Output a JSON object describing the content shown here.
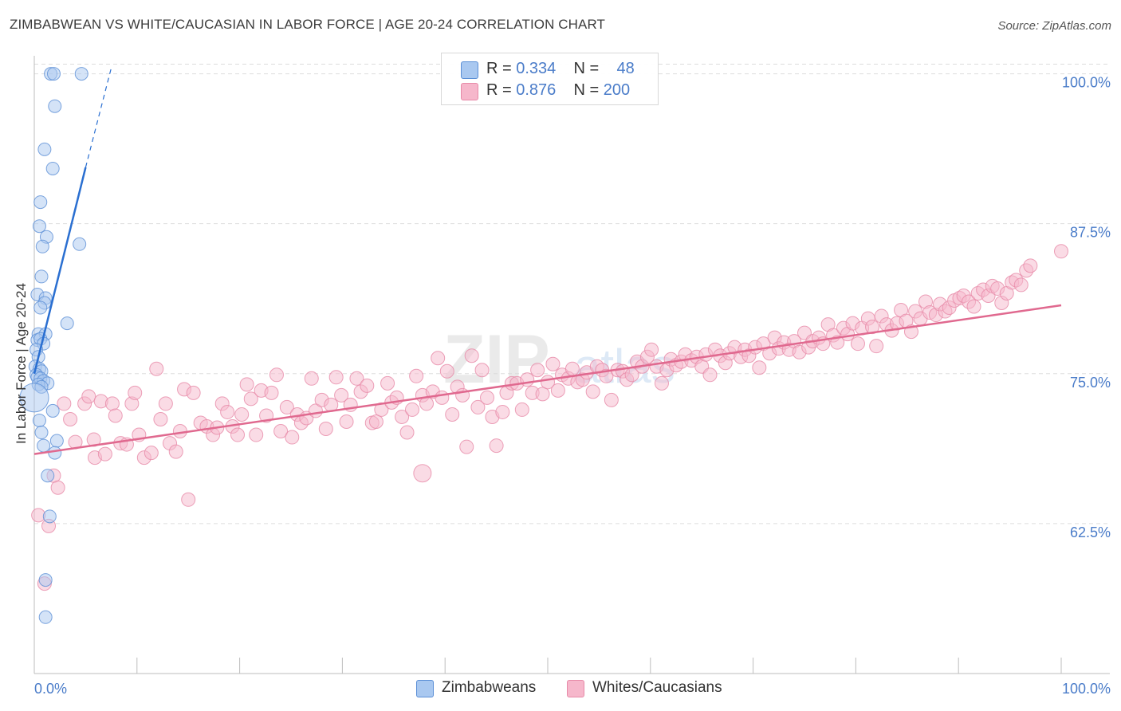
{
  "header": {
    "title": "ZIMBABWEAN VS WHITE/CAUCASIAN IN LABOR FORCE | AGE 20-24 CORRELATION CHART",
    "source": "Source: ZipAtlas.com"
  },
  "legend_box": {
    "rows": [
      {
        "r_label": "R = ",
        "r_value": "0.334",
        "n_label": "N = ",
        "n_value": "48"
      },
      {
        "r_label": "R = ",
        "r_value": "0.876",
        "n_label": "N = ",
        "n_value": "200"
      }
    ]
  },
  "bottom_legend": {
    "items": [
      {
        "label": "Zimbabweans"
      },
      {
        "label": "Whites/Caucasians"
      }
    ]
  },
  "colors": {
    "blue_fill": "#a9c8f0",
    "blue_edge": "#5b8fd6",
    "blue_line": "#2a6fd1",
    "pink_fill": "#f6b7cb",
    "pink_edge": "#e78aa8",
    "pink_line": "#e0698f",
    "tick_label": "#4a7cc9",
    "grid": "#dddddd"
  },
  "chart_data": {
    "type": "scatter",
    "title": "ZIMBABWEAN VS WHITE/CAUCASIAN IN LABOR FORCE | AGE 20-24 CORRELATION CHART",
    "xlabel": "",
    "ylabel": "In Labor Force | Age 20-24",
    "xlim": [
      0,
      100
    ],
    "ylim": [
      50,
      101.5
    ],
    "x_tick_labels": [
      "0.0%",
      "100.0%"
    ],
    "y_ticks": [
      62.5,
      75.0,
      87.5,
      100.0
    ],
    "y_tick_labels": [
      "62.5%",
      "75.0%",
      "87.5%",
      "100.0%"
    ],
    "grid": true,
    "legend_placement": "top-center",
    "watermark": "ZIPatlas",
    "series": [
      {
        "name": "Zimbabweans",
        "R": 0.334,
        "N": 48,
        "trend": {
          "x0": 0.0,
          "y0": 75.0,
          "x1": 5.0,
          "y1": 92.2,
          "dashed_to_x": 7.5,
          "dashed_to_y": 100.5
        },
        "points": [
          [
            1.6,
            100.0
          ],
          [
            1.9,
            100.0
          ],
          [
            4.6,
            100.0
          ],
          [
            2.0,
            97.3
          ],
          [
            1.0,
            93.7
          ],
          [
            1.8,
            92.1
          ],
          [
            0.6,
            89.3
          ],
          [
            0.5,
            87.3
          ],
          [
            1.2,
            86.4
          ],
          [
            0.8,
            85.6
          ],
          [
            4.4,
            85.8
          ],
          [
            0.7,
            83.1
          ],
          [
            0.3,
            81.6
          ],
          [
            1.1,
            81.3
          ],
          [
            1.0,
            80.9
          ],
          [
            0.6,
            80.5
          ],
          [
            3.2,
            79.2
          ],
          [
            0.4,
            78.3
          ],
          [
            1.1,
            78.3
          ],
          [
            0.3,
            77.8
          ],
          [
            0.6,
            77.9
          ],
          [
            0.9,
            77.5
          ],
          [
            0.2,
            77.0
          ],
          [
            0.4,
            76.4
          ],
          [
            0.1,
            75.6
          ],
          [
            0.5,
            75.4
          ],
          [
            0.7,
            75.2
          ],
          [
            0.2,
            74.9
          ],
          [
            0.3,
            74.7
          ],
          [
            0.6,
            74.6
          ],
          [
            0.9,
            74.4
          ],
          [
            1.3,
            74.2
          ],
          [
            0.4,
            74.1
          ],
          [
            0.7,
            73.9
          ],
          [
            0.0,
            73.0
          ],
          [
            1.8,
            71.9
          ],
          [
            0.5,
            71.1
          ],
          [
            0.7,
            70.1
          ],
          [
            2.2,
            69.4
          ],
          [
            0.9,
            69.0
          ],
          [
            2.0,
            68.4
          ],
          [
            1.3,
            66.5
          ],
          [
            1.5,
            63.1
          ],
          [
            1.1,
            57.8
          ],
          [
            1.1,
            54.7
          ]
        ]
      },
      {
        "name": "Whites/Caucasians",
        "R": 0.876,
        "N": 200,
        "trend": {
          "x0": 0.0,
          "y0": 68.3,
          "x1": 100.0,
          "y1": 80.7
        },
        "points": [
          [
            0.4,
            63.2
          ],
          [
            1.4,
            62.3
          ],
          [
            1.0,
            57.5
          ],
          [
            1.9,
            66.5
          ],
          [
            2.3,
            65.5
          ],
          [
            2.9,
            72.5
          ],
          [
            3.5,
            71.2
          ],
          [
            4.0,
            69.3
          ],
          [
            4.9,
            72.5
          ],
          [
            5.3,
            73.1
          ],
          [
            5.8,
            69.5
          ],
          [
            5.9,
            68.0
          ],
          [
            6.5,
            72.7
          ],
          [
            6.9,
            68.3
          ],
          [
            7.6,
            72.5
          ],
          [
            7.9,
            71.5
          ],
          [
            8.4,
            69.2
          ],
          [
            9.0,
            69.1
          ],
          [
            9.5,
            72.5
          ],
          [
            9.8,
            73.4
          ],
          [
            10.2,
            69.9
          ],
          [
            10.7,
            68.0
          ],
          [
            11.4,
            68.4
          ],
          [
            11.9,
            75.4
          ],
          [
            12.3,
            71.2
          ],
          [
            12.8,
            72.5
          ],
          [
            13.2,
            69.2
          ],
          [
            13.8,
            68.5
          ],
          [
            14.2,
            70.2
          ],
          [
            14.6,
            73.7
          ],
          [
            15.0,
            64.5
          ],
          [
            15.5,
            73.4
          ],
          [
            16.2,
            70.9
          ],
          [
            16.8,
            70.6
          ],
          [
            17.4,
            69.9
          ],
          [
            17.8,
            70.5
          ],
          [
            18.3,
            72.5
          ],
          [
            18.8,
            71.8
          ],
          [
            19.3,
            70.6
          ],
          [
            19.8,
            69.9
          ],
          [
            20.2,
            71.6
          ],
          [
            20.7,
            74.1
          ],
          [
            21.1,
            72.9
          ],
          [
            21.6,
            69.9
          ],
          [
            22.1,
            73.6
          ],
          [
            22.6,
            71.5
          ],
          [
            23.1,
            73.4
          ],
          [
            23.6,
            74.9
          ],
          [
            24.0,
            70.2
          ],
          [
            24.6,
            72.2
          ],
          [
            25.1,
            69.7
          ],
          [
            25.6,
            71.6
          ],
          [
            26.0,
            70.9
          ],
          [
            26.5,
            71.3
          ],
          [
            27.0,
            74.6
          ],
          [
            27.4,
            71.9
          ],
          [
            28.0,
            72.8
          ],
          [
            28.4,
            70.4
          ],
          [
            28.9,
            72.4
          ],
          [
            29.4,
            74.7
          ],
          [
            29.9,
            73.2
          ],
          [
            30.4,
            71.0
          ],
          [
            30.8,
            72.4
          ],
          [
            31.4,
            74.6
          ],
          [
            31.8,
            73.5
          ],
          [
            32.4,
            74.0
          ],
          [
            32.9,
            70.9
          ],
          [
            33.3,
            71.0
          ],
          [
            33.8,
            72.0
          ],
          [
            34.4,
            74.2
          ],
          [
            34.8,
            72.6
          ],
          [
            35.3,
            73.0
          ],
          [
            35.8,
            71.4
          ],
          [
            36.3,
            70.1
          ],
          [
            36.8,
            72.0
          ],
          [
            37.2,
            74.8
          ],
          [
            37.8,
            73.2
          ],
          [
            38.2,
            72.5
          ],
          [
            38.8,
            73.5
          ],
          [
            39.3,
            76.3
          ],
          [
            39.7,
            73.0
          ],
          [
            40.2,
            75.2
          ],
          [
            40.7,
            71.6
          ],
          [
            41.2,
            73.9
          ],
          [
            41.7,
            73.2
          ],
          [
            42.1,
            68.9
          ],
          [
            42.6,
            76.5
          ],
          [
            43.2,
            72.2
          ],
          [
            43.6,
            75.3
          ],
          [
            44.1,
            73.0
          ],
          [
            44.6,
            71.4
          ],
          [
            45.0,
            69.0
          ],
          [
            45.6,
            71.8
          ],
          [
            46.0,
            73.4
          ],
          [
            46.5,
            74.2
          ],
          [
            47.0,
            74.2
          ],
          [
            47.5,
            72.0
          ],
          [
            48.0,
            74.5
          ],
          [
            48.5,
            73.4
          ],
          [
            49.0,
            75.3
          ],
          [
            49.5,
            73.3
          ],
          [
            50.0,
            74.3
          ],
          [
            50.5,
            75.8
          ],
          [
            51.0,
            73.6
          ],
          [
            51.4,
            74.9
          ],
          [
            52.0,
            74.6
          ],
          [
            52.4,
            75.4
          ],
          [
            52.9,
            74.3
          ],
          [
            53.4,
            74.5
          ],
          [
            53.8,
            75.1
          ],
          [
            54.4,
            73.5
          ],
          [
            54.8,
            75.6
          ],
          [
            55.3,
            75.3
          ],
          [
            55.7,
            74.8
          ],
          [
            56.2,
            72.8
          ],
          [
            56.8,
            75.3
          ],
          [
            57.3,
            75.2
          ],
          [
            57.7,
            74.5
          ],
          [
            58.2,
            74.9
          ],
          [
            58.7,
            76.0
          ],
          [
            59.2,
            75.6
          ],
          [
            59.7,
            76.4
          ],
          [
            60.1,
            77.0
          ],
          [
            60.6,
            75.6
          ],
          [
            61.1,
            74.2
          ],
          [
            61.6,
            75.3
          ],
          [
            62.0,
            76.2
          ],
          [
            62.5,
            75.7
          ],
          [
            63.0,
            76.0
          ],
          [
            63.4,
            76.6
          ],
          [
            64.0,
            76.1
          ],
          [
            64.5,
            76.4
          ],
          [
            65.0,
            75.6
          ],
          [
            65.4,
            76.6
          ],
          [
            65.8,
            74.9
          ],
          [
            66.3,
            77.0
          ],
          [
            66.8,
            76.5
          ],
          [
            67.3,
            75.9
          ],
          [
            67.7,
            76.7
          ],
          [
            68.2,
            77.2
          ],
          [
            68.8,
            76.4
          ],
          [
            69.2,
            77.0
          ],
          [
            69.6,
            76.5
          ],
          [
            70.2,
            77.2
          ],
          [
            70.6,
            75.5
          ],
          [
            71.0,
            77.5
          ],
          [
            71.6,
            76.7
          ],
          [
            72.1,
            78.0
          ],
          [
            72.5,
            77.1
          ],
          [
            73.0,
            77.6
          ],
          [
            73.5,
            77.0
          ],
          [
            74.0,
            77.7
          ],
          [
            74.5,
            76.8
          ],
          [
            75.0,
            78.4
          ],
          [
            75.4,
            77.2
          ],
          [
            75.8,
            77.7
          ],
          [
            76.4,
            78.0
          ],
          [
            76.8,
            77.5
          ],
          [
            77.3,
            79.1
          ],
          [
            77.8,
            78.2
          ],
          [
            78.2,
            77.6
          ],
          [
            78.8,
            78.8
          ],
          [
            79.2,
            78.3
          ],
          [
            79.7,
            79.2
          ],
          [
            80.2,
            77.5
          ],
          [
            80.6,
            78.8
          ],
          [
            81.2,
            79.6
          ],
          [
            81.6,
            78.9
          ],
          [
            82.0,
            77.3
          ],
          [
            82.5,
            79.8
          ],
          [
            83.0,
            79.1
          ],
          [
            83.5,
            78.6
          ],
          [
            84.0,
            79.2
          ],
          [
            84.4,
            80.3
          ],
          [
            84.9,
            79.4
          ],
          [
            85.4,
            78.5
          ],
          [
            85.8,
            80.2
          ],
          [
            86.3,
            79.6
          ],
          [
            86.8,
            81.0
          ],
          [
            87.2,
            80.1
          ],
          [
            87.8,
            79.9
          ],
          [
            88.2,
            80.8
          ],
          [
            88.7,
            80.2
          ],
          [
            89.1,
            80.5
          ],
          [
            89.6,
            81.1
          ],
          [
            90.1,
            81.3
          ],
          [
            90.5,
            81.5
          ],
          [
            91.0,
            81.0
          ],
          [
            91.5,
            80.6
          ],
          [
            91.9,
            81.7
          ],
          [
            92.4,
            82.0
          ],
          [
            92.9,
            81.5
          ],
          [
            93.3,
            82.3
          ],
          [
            93.8,
            82.1
          ],
          [
            94.2,
            80.9
          ],
          [
            94.7,
            81.7
          ],
          [
            95.2,
            82.6
          ],
          [
            95.6,
            82.8
          ],
          [
            96.1,
            82.4
          ],
          [
            96.6,
            83.6
          ],
          [
            97.0,
            84.0
          ],
          [
            100.0,
            85.2
          ]
        ]
      }
    ]
  }
}
